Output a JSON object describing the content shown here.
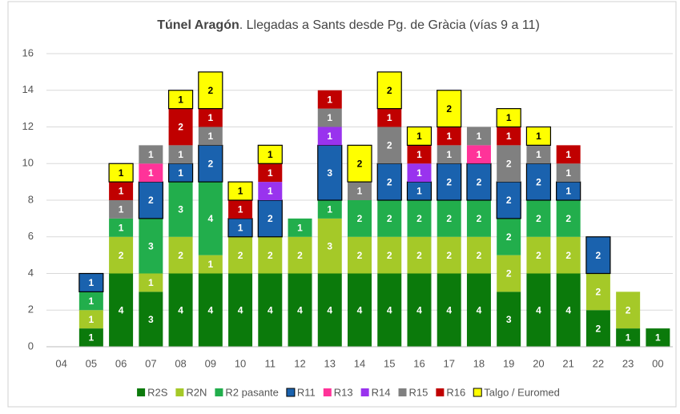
{
  "chart_data": {
    "type": "stacked_bar",
    "title": [
      "Túnel Aragón",
      ". Llegadas a Sants desde Pg. de Gràcia (vías 9 a 11)"
    ],
    "categories": [
      "04",
      "05",
      "06",
      "07",
      "08",
      "09",
      "10",
      "11",
      "12",
      "13",
      "14",
      "15",
      "16",
      "17",
      "18",
      "19",
      "20",
      "21",
      "22",
      "23",
      "00"
    ],
    "series": [
      {
        "name": "R2S",
        "color": "#0b7a0b",
        "values": [
          0,
          1,
          4,
          3,
          4,
          4,
          4,
          4,
          4,
          4,
          4,
          4,
          4,
          4,
          4,
          3,
          4,
          4,
          2,
          1,
          1
        ]
      },
      {
        "name": "R2N",
        "color": "#a5c928",
        "values": [
          0,
          1,
          2,
          1,
          2,
          1,
          2,
          2,
          2,
          3,
          2,
          2,
          2,
          2,
          2,
          2,
          2,
          2,
          2,
          2,
          0
        ]
      },
      {
        "name": "R2 pasante",
        "color": "#22ae4c",
        "values": [
          0,
          1,
          1,
          3,
          3,
          4,
          0,
          0,
          1,
          1,
          2,
          2,
          2,
          2,
          2,
          2,
          2,
          2,
          0,
          0,
          0
        ]
      },
      {
        "name": "R11",
        "color": "#1a62ae",
        "edgecolor": "#000000",
        "values": [
          0,
          1,
          0,
          2,
          1,
          2,
          1,
          2,
          0,
          3,
          0,
          2,
          1,
          2,
          2,
          2,
          2,
          1,
          2,
          0,
          0
        ]
      },
      {
        "name": "R13",
        "color": "#ff3399",
        "values": [
          0,
          0,
          0,
          1,
          0,
          0,
          0,
          0,
          0,
          0,
          0,
          0,
          0,
          0,
          1,
          0,
          0,
          0,
          0,
          0,
          0
        ]
      },
      {
        "name": "R14",
        "color": "#9933ee",
        "values": [
          0,
          0,
          0,
          0,
          0,
          0,
          0,
          1,
          0,
          1,
          0,
          0,
          1,
          0,
          0,
          0,
          0,
          0,
          0,
          0,
          0
        ]
      },
      {
        "name": "R15",
        "color": "#808080",
        "values": [
          0,
          0,
          1,
          1,
          1,
          1,
          0,
          0,
          0,
          1,
          1,
          2,
          0,
          1,
          1,
          2,
          1,
          1,
          0,
          0,
          0
        ]
      },
      {
        "name": "R16",
        "color": "#c00000",
        "values": [
          0,
          0,
          1,
          0,
          2,
          1,
          1,
          1,
          0,
          1,
          0,
          1,
          1,
          1,
          0,
          1,
          0,
          1,
          0,
          0,
          0
        ]
      },
      {
        "name": "Talgo / Euromed",
        "color": "#ffff00",
        "edgecolor": "#000000",
        "values": [
          0,
          0,
          1,
          0,
          1,
          2,
          1,
          1,
          0,
          0,
          2,
          2,
          1,
          2,
          0,
          1,
          1,
          0,
          0,
          0,
          0
        ]
      }
    ],
    "ylim": [
      0,
      16
    ],
    "yticks": [
      0,
      2,
      4,
      6,
      8,
      10,
      12,
      14,
      16
    ],
    "grid": true,
    "legend": "bottom"
  }
}
